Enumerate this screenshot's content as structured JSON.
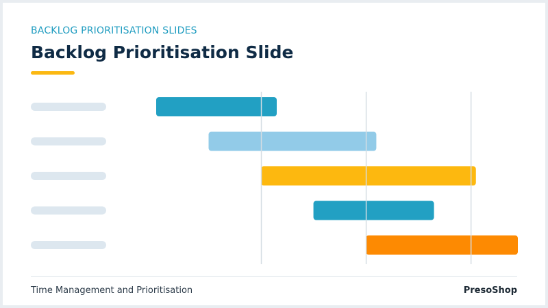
{
  "slide": {
    "kicker": "BACKLOG PRIORITISATION SLIDES",
    "title": "Backlog Prioritisation Slide",
    "footer_left": "Time Management and Prioritisation",
    "footer_right": "PresoShop"
  },
  "colors": {
    "kicker": "#1f9cc0",
    "title": "#0f2b45",
    "accent": "#fbb812",
    "label_placeholder": "#dde7ef",
    "gridline": "#d5dde3"
  },
  "chart_data": {
    "type": "gantt",
    "title": "",
    "xlabel": "",
    "ylabel": "",
    "rows": 5,
    "row_labels": [
      "",
      "",
      "",
      "",
      ""
    ],
    "grid": true,
    "gridline_count": 3,
    "series": [
      {
        "start": 0.0,
        "end": 1.15,
        "color": "#22a0c3"
      },
      {
        "start": 0.5,
        "end": 2.1,
        "color": "#92cbe8"
      },
      {
        "start": 1.0,
        "end": 3.05,
        "color": "#fdb80f"
      },
      {
        "start": 1.5,
        "end": 2.65,
        "color": "#22a0c3"
      },
      {
        "start": 2.0,
        "end": 3.45,
        "color": "#fd8a02"
      }
    ],
    "xlim": [
      0,
      3.45
    ]
  }
}
